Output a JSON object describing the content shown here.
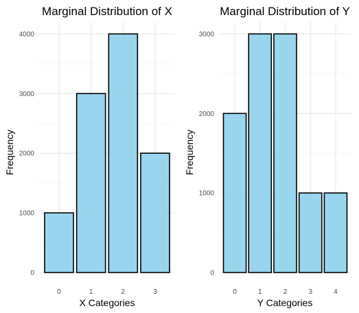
{
  "chart_data": [
    {
      "type": "bar",
      "title": "Marginal Distribution of X",
      "xlabel": "X Categories",
      "ylabel": "Frequency",
      "categories": [
        "0",
        "1",
        "2",
        "3"
      ],
      "values": [
        1000,
        3000,
        4000,
        2000
      ],
      "ylim": [
        0,
        4200
      ],
      "yticks": [
        0,
        1000,
        2000,
        3000,
        4000
      ],
      "grid": true,
      "legend": "none"
    },
    {
      "type": "bar",
      "title": "Marginal Distribution of Y",
      "xlabel": "Y Categories",
      "ylabel": "Frequency",
      "categories": [
        "0",
        "1",
        "2",
        "3",
        "4"
      ],
      "values": [
        2000,
        3000,
        3000,
        1000,
        1000
      ],
      "ylim": [
        0,
        3150
      ],
      "yticks": [
        0,
        1000,
        2000,
        3000
      ],
      "grid": true,
      "legend": "none"
    }
  ],
  "colors": {
    "bar_fill": "#87ceeb",
    "bar_fill_opacity": 0.85,
    "bar_outline": "#000000"
  }
}
